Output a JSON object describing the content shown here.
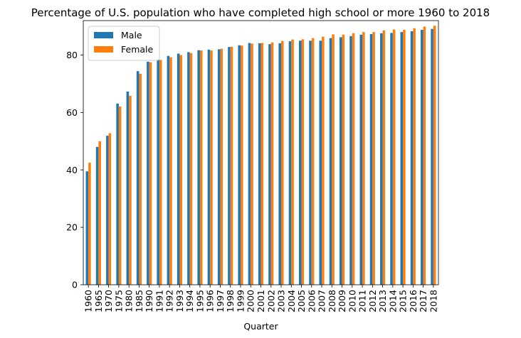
{
  "chart_data": {
    "type": "bar",
    "title": "Percentage of U.S. population who have completed high school or more 1960 to 2018",
    "xlabel": "Quarter",
    "ylabel": "",
    "ylim": [
      0,
      92
    ],
    "yticks": [
      0,
      20,
      40,
      60,
      80
    ],
    "grid": false,
    "legend_position": "top-left",
    "categories": [
      "1960",
      "1965",
      "1970",
      "1975",
      "1980",
      "1985",
      "1990",
      "1991",
      "1992",
      "1993",
      "1994",
      "1995",
      "1996",
      "1997",
      "1998",
      "1999",
      "2000",
      "2001",
      "2002",
      "2003",
      "2004",
      "2005",
      "2006",
      "2007",
      "2008",
      "2009",
      "2010",
      "2011",
      "2012",
      "2013",
      "2014",
      "2015",
      "2016",
      "2017",
      "2018"
    ],
    "series": [
      {
        "name": "Male",
        "color": "#1f77b4",
        "values": [
          39.5,
          48.0,
          51.9,
          63.1,
          67.3,
          74.4,
          77.7,
          78.5,
          79.7,
          80.5,
          81.0,
          81.7,
          81.9,
          82.0,
          82.8,
          83.4,
          84.2,
          84.1,
          83.8,
          84.1,
          84.8,
          85.0,
          85.0,
          85.0,
          85.9,
          86.2,
          86.6,
          87.1,
          87.3,
          87.6,
          87.7,
          88.0,
          88.3,
          88.8,
          89.1
        ]
      },
      {
        "name": "Female",
        "color": "#ff7f0e",
        "values": [
          42.5,
          50.0,
          52.8,
          62.1,
          65.8,
          73.5,
          77.5,
          78.3,
          79.2,
          80.0,
          80.7,
          81.6,
          81.6,
          82.2,
          82.9,
          83.3,
          84.0,
          84.2,
          84.4,
          84.9,
          85.4,
          85.5,
          85.9,
          86.4,
          87.2,
          87.1,
          87.6,
          88.0,
          88.0,
          88.6,
          88.9,
          88.8,
          89.3,
          89.9,
          90.2
        ]
      }
    ]
  }
}
